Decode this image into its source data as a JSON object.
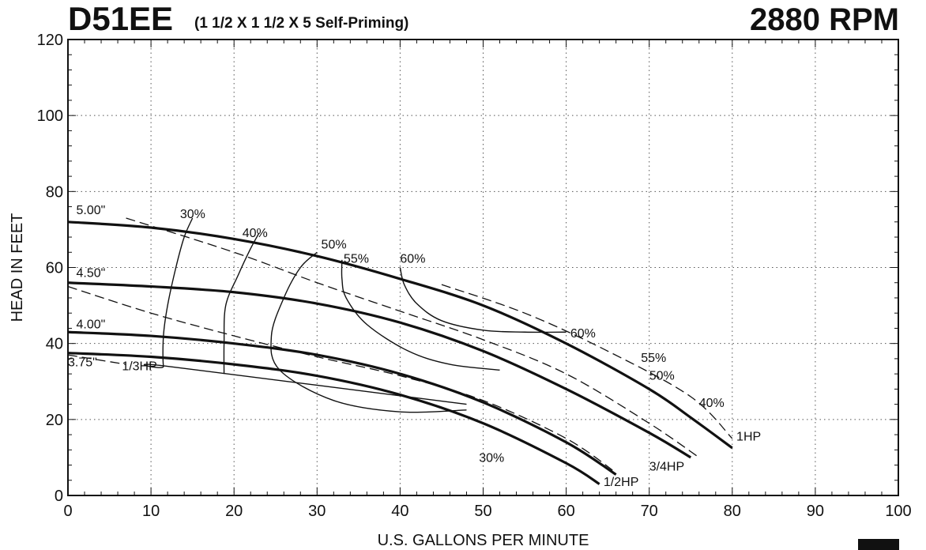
{
  "header": {
    "model": "D51EE",
    "description": "(1 1/2 X 1 1/2 X 5 Self-Priming)",
    "speed": "2880 RPM"
  },
  "chart_data": {
    "type": "line",
    "title": "D51EE (1 1/2 X 1 1/2 X 5 Self-Priming)",
    "subtitle": "2880 RPM",
    "xlabel": "U.S. GALLONS PER MINUTE",
    "ylabel": "HEAD IN FEET",
    "xlim": [
      0,
      100
    ],
    "ylim": [
      0,
      120
    ],
    "xticks": [
      0,
      10,
      20,
      30,
      40,
      50,
      60,
      70,
      80,
      90,
      100
    ],
    "yticks": [
      0,
      20,
      40,
      60,
      80,
      100,
      120
    ],
    "grid": "dotted",
    "impeller_curves": [
      {
        "name": "5.00\"",
        "x": [
          0,
          10,
          20,
          30,
          40,
          50,
          60,
          70,
          75,
          80
        ],
        "y": [
          72,
          70.5,
          67.5,
          63,
          57,
          50,
          40,
          28,
          20.5,
          12.5
        ]
      },
      {
        "name": "4.50\"",
        "x": [
          0,
          10,
          20,
          30,
          40,
          50,
          60,
          70,
          75
        ],
        "y": [
          56,
          55,
          53.5,
          50.5,
          45.5,
          38,
          28,
          16.5,
          10
        ]
      },
      {
        "name": "4.00\"",
        "x": [
          0,
          10,
          20,
          30,
          40,
          50,
          60,
          66
        ],
        "y": [
          43,
          42,
          40,
          37,
          32,
          24.5,
          14,
          5.5
        ]
      },
      {
        "name": "3.75\"",
        "x": [
          0,
          10,
          20,
          30,
          40,
          50,
          60,
          64
        ],
        "y": [
          37.5,
          36.5,
          34.5,
          31.5,
          26.5,
          19,
          8.5,
          3
        ]
      }
    ],
    "horsepower_curves": [
      {
        "name": "1/3HP",
        "x": [
          0,
          7
        ],
        "y": [
          37,
          34.5
        ]
      },
      {
        "name": "1/2HP",
        "x": [
          0,
          10,
          20,
          30,
          40,
          50,
          60,
          66
        ],
        "y": [
          55,
          48,
          42,
          36.5,
          31.5,
          25,
          15,
          6
        ]
      },
      {
        "name": "3/4HP",
        "x": [
          7,
          20,
          30,
          40,
          50,
          60,
          70,
          76
        ],
        "y": [
          73,
          64,
          56,
          48.5,
          41,
          32,
          19,
          10
        ]
      },
      {
        "name": "1HP",
        "x": [
          45,
          55,
          65,
          75,
          80
        ],
        "y": [
          55.5,
          48,
          38,
          26,
          15
        ]
      }
    ],
    "efficiency_curves": [
      {
        "name": "30%",
        "x": [
          15,
          14,
          13,
          12,
          11.5,
          11.5,
          12,
          48
        ],
        "y": [
          73,
          68,
          60,
          50,
          42,
          34,
          34,
          24
        ]
      },
      {
        "name": "40%",
        "x": [
          23,
          22,
          20.5,
          19,
          18.8,
          18.8
        ],
        "y": [
          69,
          65,
          58,
          50,
          40,
          32
        ]
      },
      {
        "name": "50%",
        "x": [
          30,
          28,
          26,
          24.5,
          25.5,
          32,
          40,
          48
        ],
        "y": [
          64,
          60,
          52,
          42,
          33,
          25,
          22,
          22.5
        ]
      },
      {
        "name": "55%",
        "x": [
          33,
          33,
          33.5,
          36,
          41,
          46,
          52
        ],
        "y": [
          62,
          57,
          52,
          45,
          38,
          34.5,
          33
        ]
      },
      {
        "name": "60%",
        "x": [
          40,
          40.5,
          42,
          45,
          50,
          55,
          60
        ],
        "y": [
          60,
          55.5,
          50.5,
          46,
          43.5,
          43,
          43
        ]
      }
    ],
    "annotations": [
      {
        "text": "5.00\"",
        "x": 1,
        "y": 74
      },
      {
        "text": "4.50\"",
        "x": 1,
        "y": 57.5
      },
      {
        "text": "4.00\"",
        "x": 1,
        "y": 44
      },
      {
        "text": "3.75\"",
        "x": 0,
        "y": 34
      },
      {
        "text": "1/3HP",
        "x": 6.5,
        "y": 33
      },
      {
        "text": "1/2HP",
        "x": 64.5,
        "y": 2.5
      },
      {
        "text": "3/4HP",
        "x": 70,
        "y": 6.5
      },
      {
        "text": "1HP",
        "x": 80.5,
        "y": 14.5
      },
      {
        "text": "30%",
        "x": 13.5,
        "y": 73
      },
      {
        "text": "40%",
        "x": 21,
        "y": 68
      },
      {
        "text": "50%",
        "x": 30.5,
        "y": 65
      },
      {
        "text": "55%",
        "x": 33.2,
        "y": 61.2
      },
      {
        "text": "60%",
        "x": 40,
        "y": 61.2
      },
      {
        "text": "60%",
        "x": 60.5,
        "y": 41.6
      },
      {
        "text": "55%",
        "x": 69,
        "y": 35.1
      },
      {
        "text": "50%",
        "x": 70,
        "y": 30.5
      },
      {
        "text": "40%",
        "x": 76,
        "y": 23.3
      },
      {
        "text": "30%",
        "x": 49.5,
        "y": 8.8
      }
    ]
  }
}
